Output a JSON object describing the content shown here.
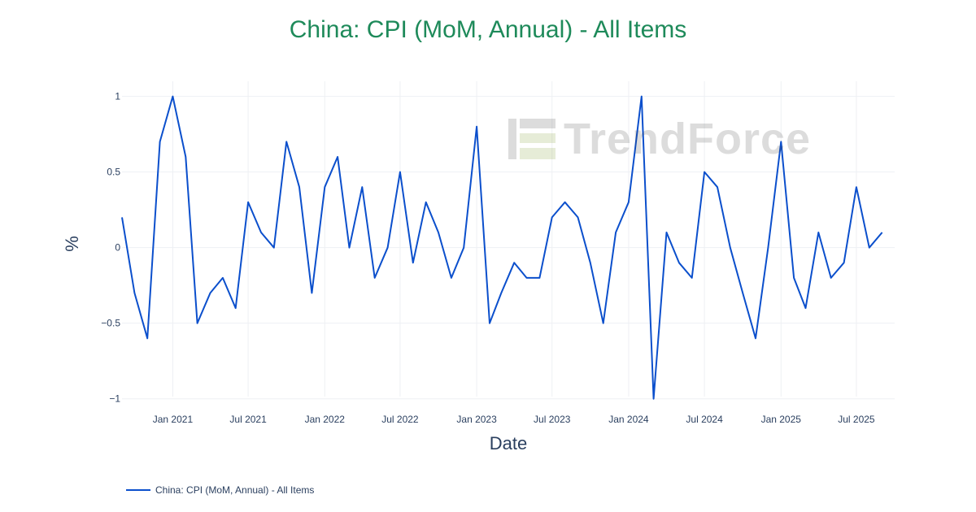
{
  "chart_data": {
    "type": "line",
    "title": "China: CPI (MoM, Annual)  - All Items",
    "xlabel": "Date",
    "ylabel": "%",
    "ylim": [
      -1.05,
      1.1
    ],
    "yticks": [
      1,
      0.5,
      0,
      -0.5,
      -1
    ],
    "ytick_labels": [
      "1",
      "0.5",
      "0",
      "−0.5",
      "−1"
    ],
    "xlim": [
      "2020-09-01",
      "2025-10-01"
    ],
    "xticks": [
      "2021-01-01",
      "2021-07-01",
      "2022-01-01",
      "2022-07-01",
      "2023-01-01",
      "2023-07-01",
      "2024-01-01",
      "2024-07-01",
      "2025-01-01",
      "2025-07-01"
    ],
    "xtick_labels": [
      "Jan 2021",
      "Jul 2021",
      "Jan 2022",
      "Jul 2022",
      "Jan 2023",
      "Jul 2023",
      "Jan 2024",
      "Jul 2024",
      "Jan 2025",
      "Jul 2025"
    ],
    "grid": true,
    "legend_position": "bottom-left",
    "series": [
      {
        "name": "China: CPI (MoM, Annual)  - All Items",
        "color": "#0b4fcc",
        "x": [
          "2020-09-01",
          "2020-10-01",
          "2020-11-01",
          "2020-12-01",
          "2021-01-01",
          "2021-02-01",
          "2021-03-01",
          "2021-04-01",
          "2021-05-01",
          "2021-06-01",
          "2021-07-01",
          "2021-08-01",
          "2021-09-01",
          "2021-10-01",
          "2021-11-01",
          "2021-12-01",
          "2022-01-01",
          "2022-02-01",
          "2022-03-01",
          "2022-04-01",
          "2022-05-01",
          "2022-06-01",
          "2022-07-01",
          "2022-08-01",
          "2022-09-01",
          "2022-10-01",
          "2022-11-01",
          "2022-12-01",
          "2023-01-01",
          "2023-02-01",
          "2023-03-01",
          "2023-04-01",
          "2023-05-01",
          "2023-06-01",
          "2023-07-01",
          "2023-08-01",
          "2023-09-01",
          "2023-10-01",
          "2023-11-01",
          "2023-12-01",
          "2024-01-01",
          "2024-02-01",
          "2024-03-01",
          "2024-04-01",
          "2024-05-01",
          "2024-06-01",
          "2024-07-01",
          "2024-08-01",
          "2024-09-01",
          "2024-10-01",
          "2024-11-01",
          "2024-12-01",
          "2025-01-01",
          "2025-02-01",
          "2025-03-01",
          "2025-04-01",
          "2025-05-01",
          "2025-06-01",
          "2025-07-01",
          "2025-08-01",
          "2025-09-01"
        ],
        "values": [
          0.2,
          -0.3,
          -0.6,
          0.7,
          1.0,
          0.6,
          -0.5,
          -0.3,
          -0.2,
          -0.4,
          0.3,
          0.1,
          0.0,
          0.7,
          0.4,
          -0.3,
          0.4,
          0.6,
          0.0,
          0.4,
          -0.2,
          0.0,
          0.5,
          -0.1,
          0.3,
          0.1,
          -0.2,
          0.0,
          0.8,
          -0.5,
          -0.3,
          -0.1,
          -0.2,
          -0.2,
          0.2,
          0.3,
          0.2,
          -0.1,
          -0.5,
          0.1,
          0.3,
          1.0,
          -1.0,
          0.1,
          -0.1,
          -0.2,
          0.5,
          0.4,
          0.0,
          -0.3,
          -0.6,
          0.0,
          0.7,
          -0.2,
          -0.4,
          0.1,
          -0.2,
          -0.1,
          0.4,
          0.0,
          0.1
        ]
      }
    ]
  },
  "watermark": {
    "text": "TrendForce"
  }
}
